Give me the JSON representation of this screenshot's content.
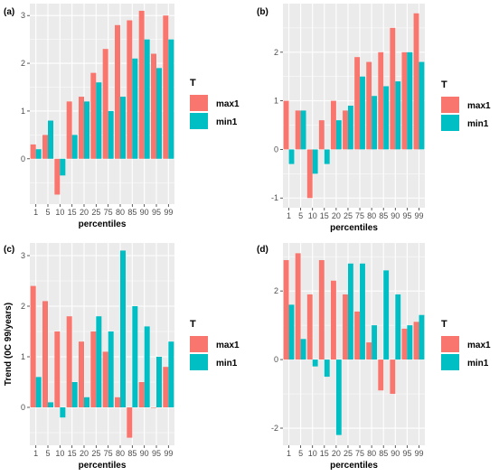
{
  "colors": {
    "max1": "#F8766D",
    "min1": "#00BFC4",
    "panel_bg": "#EBEBEB",
    "grid": "#FFFFFF"
  },
  "chart_data": [
    {
      "type": "bar",
      "tag": "(a)",
      "categories": [
        "1",
        "5",
        "10",
        "15",
        "20",
        "25",
        "75",
        "80",
        "85",
        "90",
        "95",
        "99"
      ],
      "series": [
        {
          "name": "max1",
          "values": [
            0.3,
            0.5,
            -0.75,
            1.2,
            1.3,
            1.8,
            2.3,
            2.8,
            2.9,
            3.1,
            2.2,
            3.0
          ]
        },
        {
          "name": "min1",
          "values": [
            0.2,
            0.8,
            -0.35,
            0.5,
            1.2,
            1.6,
            1.0,
            1.3,
            2.1,
            2.5,
            1.9,
            2.5
          ]
        }
      ],
      "xlabel": "percentiles",
      "ylabel": "",
      "ylim": [
        -0.95,
        3.25
      ],
      "yticks": [
        "0",
        "1",
        "2",
        "3"
      ],
      "legend_title": "T",
      "legend_placement": "right",
      "grid": true
    },
    {
      "type": "bar",
      "tag": "(b)",
      "categories": [
        "1",
        "5",
        "10",
        "15",
        "20",
        "25",
        "75",
        "80",
        "85",
        "90",
        "95",
        "99"
      ],
      "series": [
        {
          "name": "max1",
          "values": [
            1.0,
            0.8,
            -1.0,
            0.6,
            1.0,
            0.8,
            1.9,
            1.8,
            2.0,
            2.5,
            2.0,
            2.8
          ]
        },
        {
          "name": "min1",
          "values": [
            -0.3,
            0.8,
            -0.5,
            -0.3,
            0.6,
            0.9,
            1.5,
            1.1,
            1.3,
            1.4,
            2.0,
            1.8
          ]
        }
      ],
      "xlabel": "percentiles",
      "ylabel": "",
      "ylim": [
        -1.2,
        3.0
      ],
      "yticks": [
        "-1",
        "0",
        "1",
        "2"
      ],
      "legend_title": "T",
      "legend_placement": "right",
      "grid": true
    },
    {
      "type": "bar",
      "tag": "(c)",
      "categories": [
        "1",
        "5",
        "10",
        "15",
        "20",
        "25",
        "75",
        "80",
        "85",
        "90",
        "95",
        "99"
      ],
      "series": [
        {
          "name": "max1",
          "values": [
            2.4,
            2.1,
            1.5,
            1.8,
            1.3,
            1.5,
            1.1,
            0.2,
            -0.6,
            0.5,
            0.0,
            0.8
          ]
        },
        {
          "name": "min1",
          "values": [
            0.6,
            0.1,
            -0.2,
            0.5,
            0.2,
            1.8,
            1.5,
            3.1,
            2.0,
            1.6,
            1.0,
            1.3
          ]
        }
      ],
      "xlabel": "percentiles",
      "ylabel": "Trend (0C 99/years)",
      "ylim": [
        -0.75,
        3.25
      ],
      "yticks": [
        "0",
        "1",
        "2",
        "3"
      ],
      "legend_title": "T",
      "legend_placement": "right",
      "grid": true
    },
    {
      "type": "bar",
      "tag": "(d)",
      "categories": [
        "1",
        "5",
        "10",
        "15",
        "20",
        "25",
        "75",
        "80",
        "85",
        "90",
        "95",
        "99"
      ],
      "series": [
        {
          "name": "max1",
          "values": [
            2.9,
            3.1,
            1.9,
            2.9,
            2.3,
            1.9,
            1.4,
            0.5,
            -0.9,
            -1.0,
            0.9,
            1.1
          ]
        },
        {
          "name": "min1",
          "values": [
            1.6,
            0.6,
            -0.2,
            -0.5,
            -2.2,
            2.8,
            2.8,
            1.0,
            2.6,
            1.9,
            1.0,
            1.3
          ]
        }
      ],
      "xlabel": "percentiles",
      "ylabel": "",
      "ylim": [
        -2.5,
        3.4
      ],
      "yticks": [
        "-2",
        "0",
        "2"
      ],
      "legend_title": "T",
      "legend_placement": "right",
      "grid": true
    }
  ]
}
